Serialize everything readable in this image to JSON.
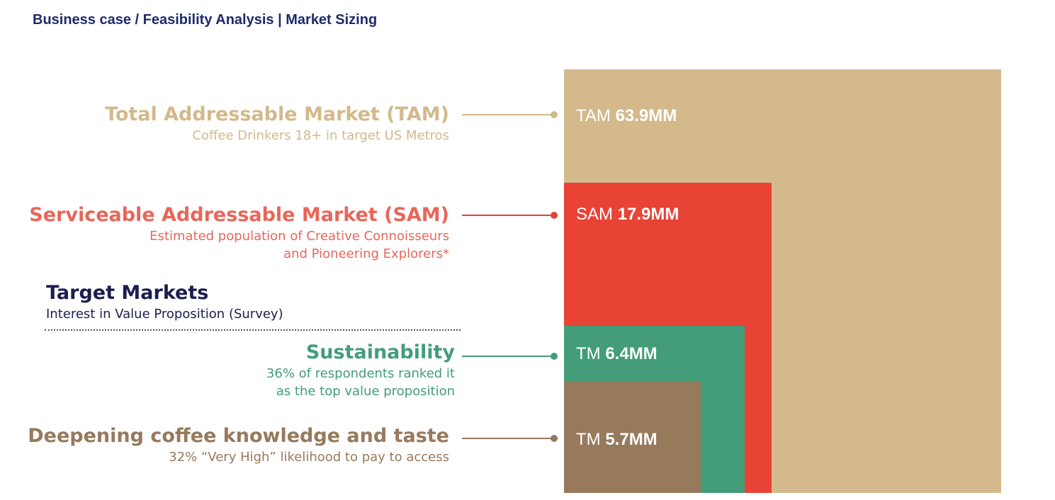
{
  "breadcrumb": "Business case / Feasibility Analysis | Market Sizing",
  "colors": {
    "tam": "#d3b98b",
    "sam": "#e84335",
    "sustainability": "#439d78",
    "knowledge": "#97795c",
    "navy": "#1a1f4d"
  },
  "tiers": {
    "tam": {
      "title": "Total Addressable Market (TAM)",
      "subtitle": [
        "Coffee Drinkers 18+ in target US Metros"
      ],
      "box_prefix": "TAM",
      "box_value": "63.9MM"
    },
    "sam": {
      "title": "Serviceable Addressable Market (SAM)",
      "subtitle": [
        "Estimated population of Creative Connoisseurs",
        "and Pioneering Explorers*"
      ],
      "box_prefix": "SAM",
      "box_value": "17.9MM"
    },
    "sustainability": {
      "title": "Sustainability",
      "subtitle": [
        "36% of respondents ranked it",
        "as the top value proposition"
      ],
      "box_prefix": "TM",
      "box_value": "6.4MM"
    },
    "knowledge": {
      "title": "Deepening coffee knowledge and taste",
      "subtitle": [
        "32% “Very High” likelihood to pay to access"
      ],
      "box_prefix": "TM",
      "box_value": "5.7MM"
    }
  },
  "target_markets": {
    "title": "Target Markets",
    "subtitle": "Interest in Value Proposition (Survey)"
  }
}
